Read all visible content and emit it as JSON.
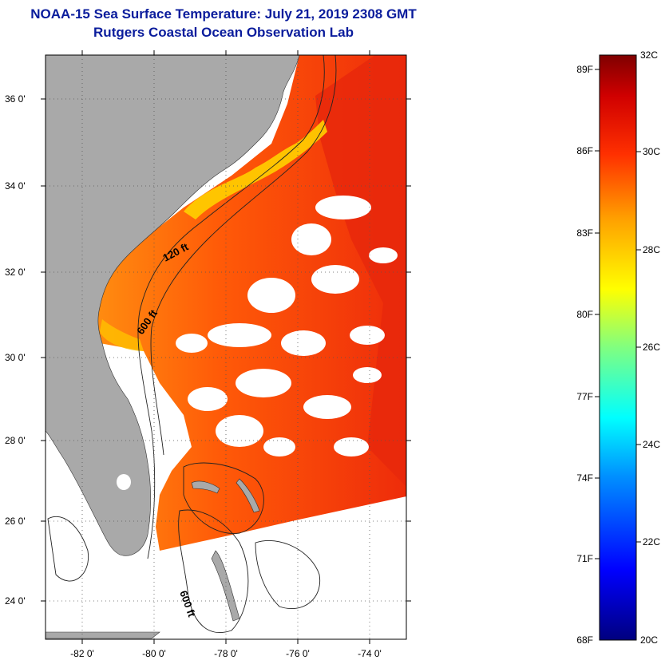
{
  "header": {
    "title_line1": "NOAA-15 Sea Surface Temperature:  July 21, 2019 2308 GMT",
    "title_line2": "Rutgers Coastal Ocean Observation Lab"
  },
  "map": {
    "lat_ticks": [
      "36 0'",
      "34 0'",
      "32 0'",
      "30 0'",
      "28 0'",
      "26 0'",
      "24 0'"
    ],
    "lon_ticks": [
      "-82 0'",
      "-80 0'",
      "-78 0'",
      "-76 0'",
      "-74 0'"
    ],
    "isobaths": [
      "120 ft",
      "600 ft",
      "600 ft"
    ],
    "colors": {
      "land": "#a9a9a9",
      "ocean_warm": "#ff4a00",
      "ocean_hot": "#e61e0a",
      "nearshore": "#ffd400",
      "cloud": "#ffffff"
    }
  },
  "colorbar": {
    "fahrenheit_labels": [
      "89F",
      "86F",
      "83F",
      "80F",
      "77F",
      "74F",
      "71F",
      "68F"
    ],
    "celsius_labels": [
      "32C",
      "30C",
      "28C",
      "26C",
      "24C",
      "22C",
      "20C"
    ],
    "range_c": [
      20,
      32
    ],
    "range_f": [
      68,
      89
    ]
  }
}
